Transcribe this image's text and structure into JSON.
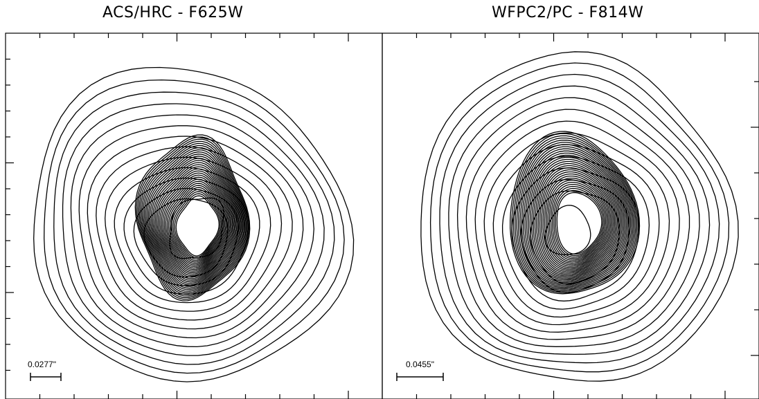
{
  "chart_data": [
    {
      "type": "contour",
      "title": "ACS/HRC - F625W",
      "scale_bar_label": "0.0277\"",
      "contour_count_outer": 13,
      "contour_count_inner": 30,
      "core": "bright saturated center (blank)"
    },
    {
      "type": "contour",
      "title": "WFPC2/PC - F814W",
      "scale_bar_label": "0.0455\"",
      "contour_count_outer": 13,
      "contour_count_inner": 30,
      "core": "bright saturated center (blank)"
    }
  ],
  "colors": {
    "line": "#000000",
    "background": "#ffffff"
  }
}
